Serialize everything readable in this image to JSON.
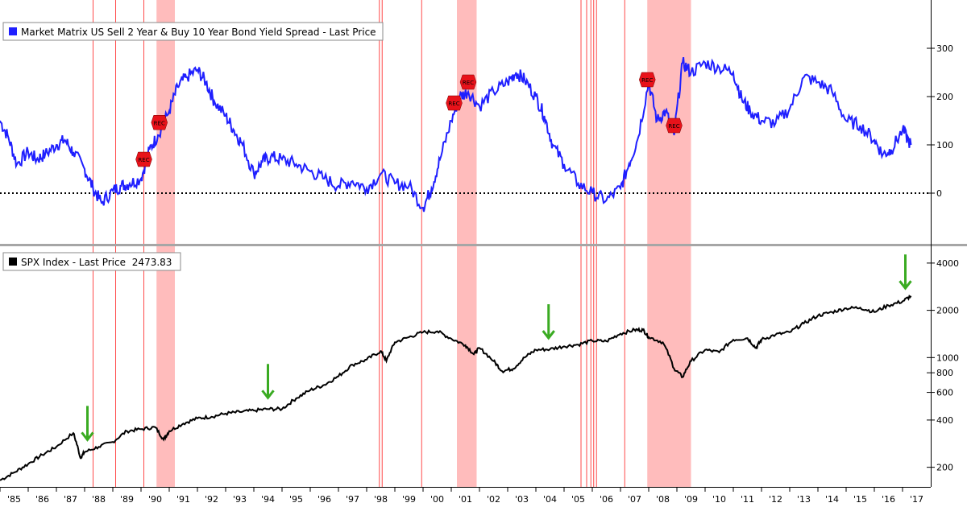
{
  "chart_data": [
    {
      "type": "line",
      "panel": "top",
      "legend": "Market Matrix US Sell 2 Year & Buy 10 Year Bond Yield Spread - Last Price",
      "y_ticks": [
        300,
        200,
        100,
        0
      ],
      "ylim": [
        -100,
        400
      ],
      "reference_line": 0,
      "color": "#1f1fff",
      "recession_marker_label": "REC",
      "rec_markers": [
        1990.1,
        1990.65,
        2001.1,
        2001.6,
        2007.95,
        2008.9
      ],
      "series": [
        {
          "x": [
            1985.0,
            1985.3,
            1985.6,
            1986.0,
            1986.3,
            1986.6,
            1987.0,
            1987.3,
            1987.6,
            1988.0,
            1988.3,
            1988.6,
            1989.0,
            1989.3,
            1989.6,
            1990.0,
            1990.3,
            1990.6,
            1991.0,
            1991.3,
            1991.6,
            1992.0,
            1992.3,
            1992.6,
            1993.0,
            1993.3,
            1993.6,
            1994.0,
            1994.3,
            1994.6,
            1995.0,
            1995.5,
            1996.0,
            1996.5,
            1997.0,
            1997.5,
            1998.0,
            1998.5,
            1999.0,
            1999.5,
            2000.0,
            2000.3,
            2000.6,
            2001.0,
            2001.3,
            2001.6,
            2002.0,
            2002.5,
            2003.0,
            2003.3,
            2003.6,
            2004.0,
            2004.3,
            2004.6,
            2005.0,
            2005.5,
            2006.0,
            2006.5,
            2007.0,
            2007.3,
            2007.6,
            2008.0,
            2008.3,
            2008.6,
            2008.9,
            2009.2,
            2009.5,
            2010.0,
            2010.5,
            2011.0,
            2011.3,
            2011.6,
            2012.0,
            2012.5,
            2013.0,
            2013.5,
            2014.0,
            2014.5,
            2015.0,
            2015.5,
            2016.0,
            2016.3,
            2016.6,
            2017.0,
            2017.3
          ],
          "y": [
            150,
            115,
            60,
            85,
            70,
            80,
            100,
            110,
            85,
            50,
            10,
            -20,
            5,
            15,
            20,
            30,
            90,
            120,
            170,
            220,
            240,
            255,
            230,
            190,
            160,
            130,
            100,
            40,
            65,
            75,
            70,
            60,
            45,
            30,
            15,
            25,
            10,
            40,
            20,
            15,
            -30,
            10,
            70,
            150,
            200,
            210,
            180,
            210,
            230,
            250,
            235,
            200,
            160,
            100,
            60,
            20,
            0,
            -15,
            10,
            60,
            110,
            230,
            150,
            170,
            120,
            270,
            250,
            270,
            260,
            250,
            195,
            170,
            150,
            145,
            175,
            240,
            230,
            210,
            150,
            140,
            110,
            80,
            90,
            130,
            100
          ]
        }
      ]
    },
    {
      "type": "line",
      "panel": "bottom",
      "legend_prefix": "SPX Index - Last Price",
      "last_price": "2473.83",
      "scale": "log",
      "y_ticks": [
        4000,
        2000,
        1000,
        800,
        600,
        400,
        200
      ],
      "ylim": [
        150,
        5000
      ],
      "color": "#000000",
      "highlight_arrow_years": [
        1988.1,
        1994.5,
        2004.45,
        2017.1
      ],
      "series": [
        {
          "x": [
            1985.0,
            1985.5,
            1986.0,
            1986.5,
            1987.0,
            1987.6,
            1987.85,
            1988.0,
            1988.5,
            1989.0,
            1989.5,
            1990.0,
            1990.5,
            1990.8,
            1991.0,
            1991.5,
            1992.0,
            1992.5,
            1993.0,
            1993.5,
            1994.0,
            1994.5,
            1995.0,
            1995.5,
            1996.0,
            1996.5,
            1997.0,
            1997.5,
            1998.0,
            1998.5,
            1998.7,
            1999.0,
            1999.5,
            2000.0,
            2000.5,
            2001.0,
            2001.5,
            2001.8,
            2002.0,
            2002.5,
            2002.8,
            2003.2,
            2003.6,
            2004.0,
            2004.5,
            2005.0,
            2005.5,
            2006.0,
            2006.5,
            2007.0,
            2007.5,
            2007.8,
            2008.0,
            2008.5,
            2008.9,
            2009.2,
            2009.5,
            2010.0,
            2010.5,
            2011.0,
            2011.5,
            2011.8,
            2012.0,
            2012.5,
            2013.0,
            2013.5,
            2014.0,
            2014.5,
            2015.0,
            2015.5,
            2016.0,
            2016.5,
            2017.0,
            2017.3
          ],
          "y": [
            165,
            185,
            210,
            240,
            270,
            330,
            230,
            250,
            270,
            290,
            340,
            350,
            360,
            300,
            340,
            380,
            410,
            420,
            440,
            450,
            460,
            470,
            470,
            550,
            620,
            670,
            760,
            900,
            970,
            1100,
            950,
            1250,
            1350,
            1450,
            1470,
            1320,
            1200,
            1050,
            1150,
            950,
            820,
            850,
            1000,
            1120,
            1130,
            1180,
            1210,
            1280,
            1270,
            1420,
            1500,
            1500,
            1350,
            1250,
            850,
            750,
            950,
            1120,
            1080,
            1300,
            1330,
            1150,
            1300,
            1400,
            1450,
            1650,
            1850,
            1950,
            2060,
            2080,
            1950,
            2150,
            2280,
            2470
          ]
        }
      ]
    }
  ],
  "x_axis": {
    "labels": [
      "'85",
      "'86",
      "'87",
      "'88",
      "'89",
      "'90",
      "'91",
      "'92",
      "'93",
      "'94",
      "'95",
      "'96",
      "'97",
      "'98",
      "'99",
      "'00",
      "'01",
      "'02",
      "'03",
      "'04",
      "'05",
      "'06",
      "'07",
      "'08",
      "'09",
      "'10",
      "'11",
      "'12",
      "'13",
      "'14",
      "'15",
      "'16",
      "'17"
    ],
    "start_year": 1985,
    "end_year": 2018
  },
  "recession_bands": [
    [
      1990.55,
      1991.2
    ],
    [
      2001.2,
      2001.9
    ],
    [
      2007.95,
      2009.5
    ]
  ],
  "vertical_lines": [
    1988.3,
    1989.1,
    1990.1,
    1998.45,
    1998.55,
    1999.95,
    2005.6,
    2005.8,
    2005.95,
    2006.05,
    2006.15,
    2007.15
  ],
  "colors": {
    "band": "#ffbcbc",
    "vline": "#ff4a4a",
    "arrow": "#3aab22",
    "rec_marker": "#e8121a"
  }
}
